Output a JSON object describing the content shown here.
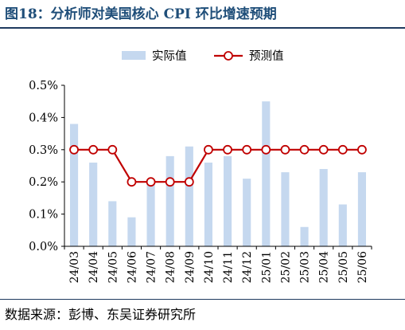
{
  "figure": {
    "title": "图18：分析师对美国核心 CPI 环比增速预期",
    "source": "数据来源：彭博、东吴证券研究所"
  },
  "colors": {
    "bar": "#c5d8ef",
    "line": "#c00000",
    "marker_fill": "#ffffff",
    "axis": "#000000",
    "title": "#1f4e79"
  },
  "chart_data": {
    "type": "bar",
    "categories": [
      "24/03",
      "24/04",
      "24/05",
      "24/06",
      "24/07",
      "24/08",
      "24/09",
      "24/10",
      "24/11",
      "24/12",
      "25/01",
      "25/02",
      "25/03",
      "25/04",
      "25/05",
      "25/06"
    ],
    "series": [
      {
        "name": "实际值",
        "type": "bar",
        "values": [
          0.38,
          0.26,
          0.14,
          0.09,
          0.2,
          0.28,
          0.31,
          0.26,
          0.28,
          0.21,
          0.45,
          0.23,
          0.06,
          0.24,
          0.13,
          0.23
        ]
      },
      {
        "name": "预测值",
        "type": "line",
        "values": [
          0.3,
          0.3,
          0.3,
          0.2,
          0.2,
          0.2,
          0.2,
          0.3,
          0.3,
          0.3,
          0.3,
          0.3,
          0.3,
          0.3,
          0.3,
          0.3
        ]
      }
    ],
    "ylim": [
      0,
      0.5
    ],
    "yticks": [
      "0.0%",
      "0.1%",
      "0.2%",
      "0.3%",
      "0.4%",
      "0.5%"
    ],
    "legend_position": "top-center",
    "grid": false
  }
}
